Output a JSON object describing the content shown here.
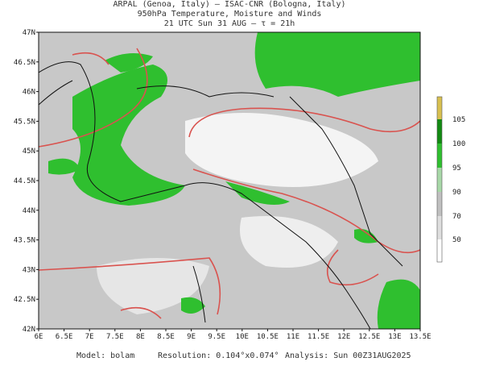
{
  "header": {
    "lines": [
      "ARPAL (Genoa, Italy)  —  ISAC-CNR (Bologna, Italy)",
      "950hPa Temperature, Moisture and Winds",
      "21 UTC Sun 31 AUG  —  τ = 21h"
    ]
  },
  "map": {
    "lat_labels": [
      "47N",
      "46.5N",
      "46N",
      "45.5N",
      "45N",
      "44.5N",
      "44N",
      "43.5N",
      "43N",
      "42.5N",
      "42N"
    ],
    "lon_labels": [
      "6E",
      "6.5E",
      "7E",
      "7.5E",
      "8E",
      "8.5E",
      "9E",
      "9.5E",
      "10E",
      "10.5E",
      "11E",
      "11.5E",
      "12E",
      "12.5E",
      "13E",
      "13.5E"
    ]
  },
  "colorbar": {
    "labels": [
      "105",
      "100",
      "95",
      "90",
      "70",
      "50"
    ]
  },
  "footer": {
    "model": "Model: bolam",
    "resolution": "Resolution: 0.104°x0.074°",
    "analysis": "Analysis: Sun 00Z31AUG2025"
  }
}
